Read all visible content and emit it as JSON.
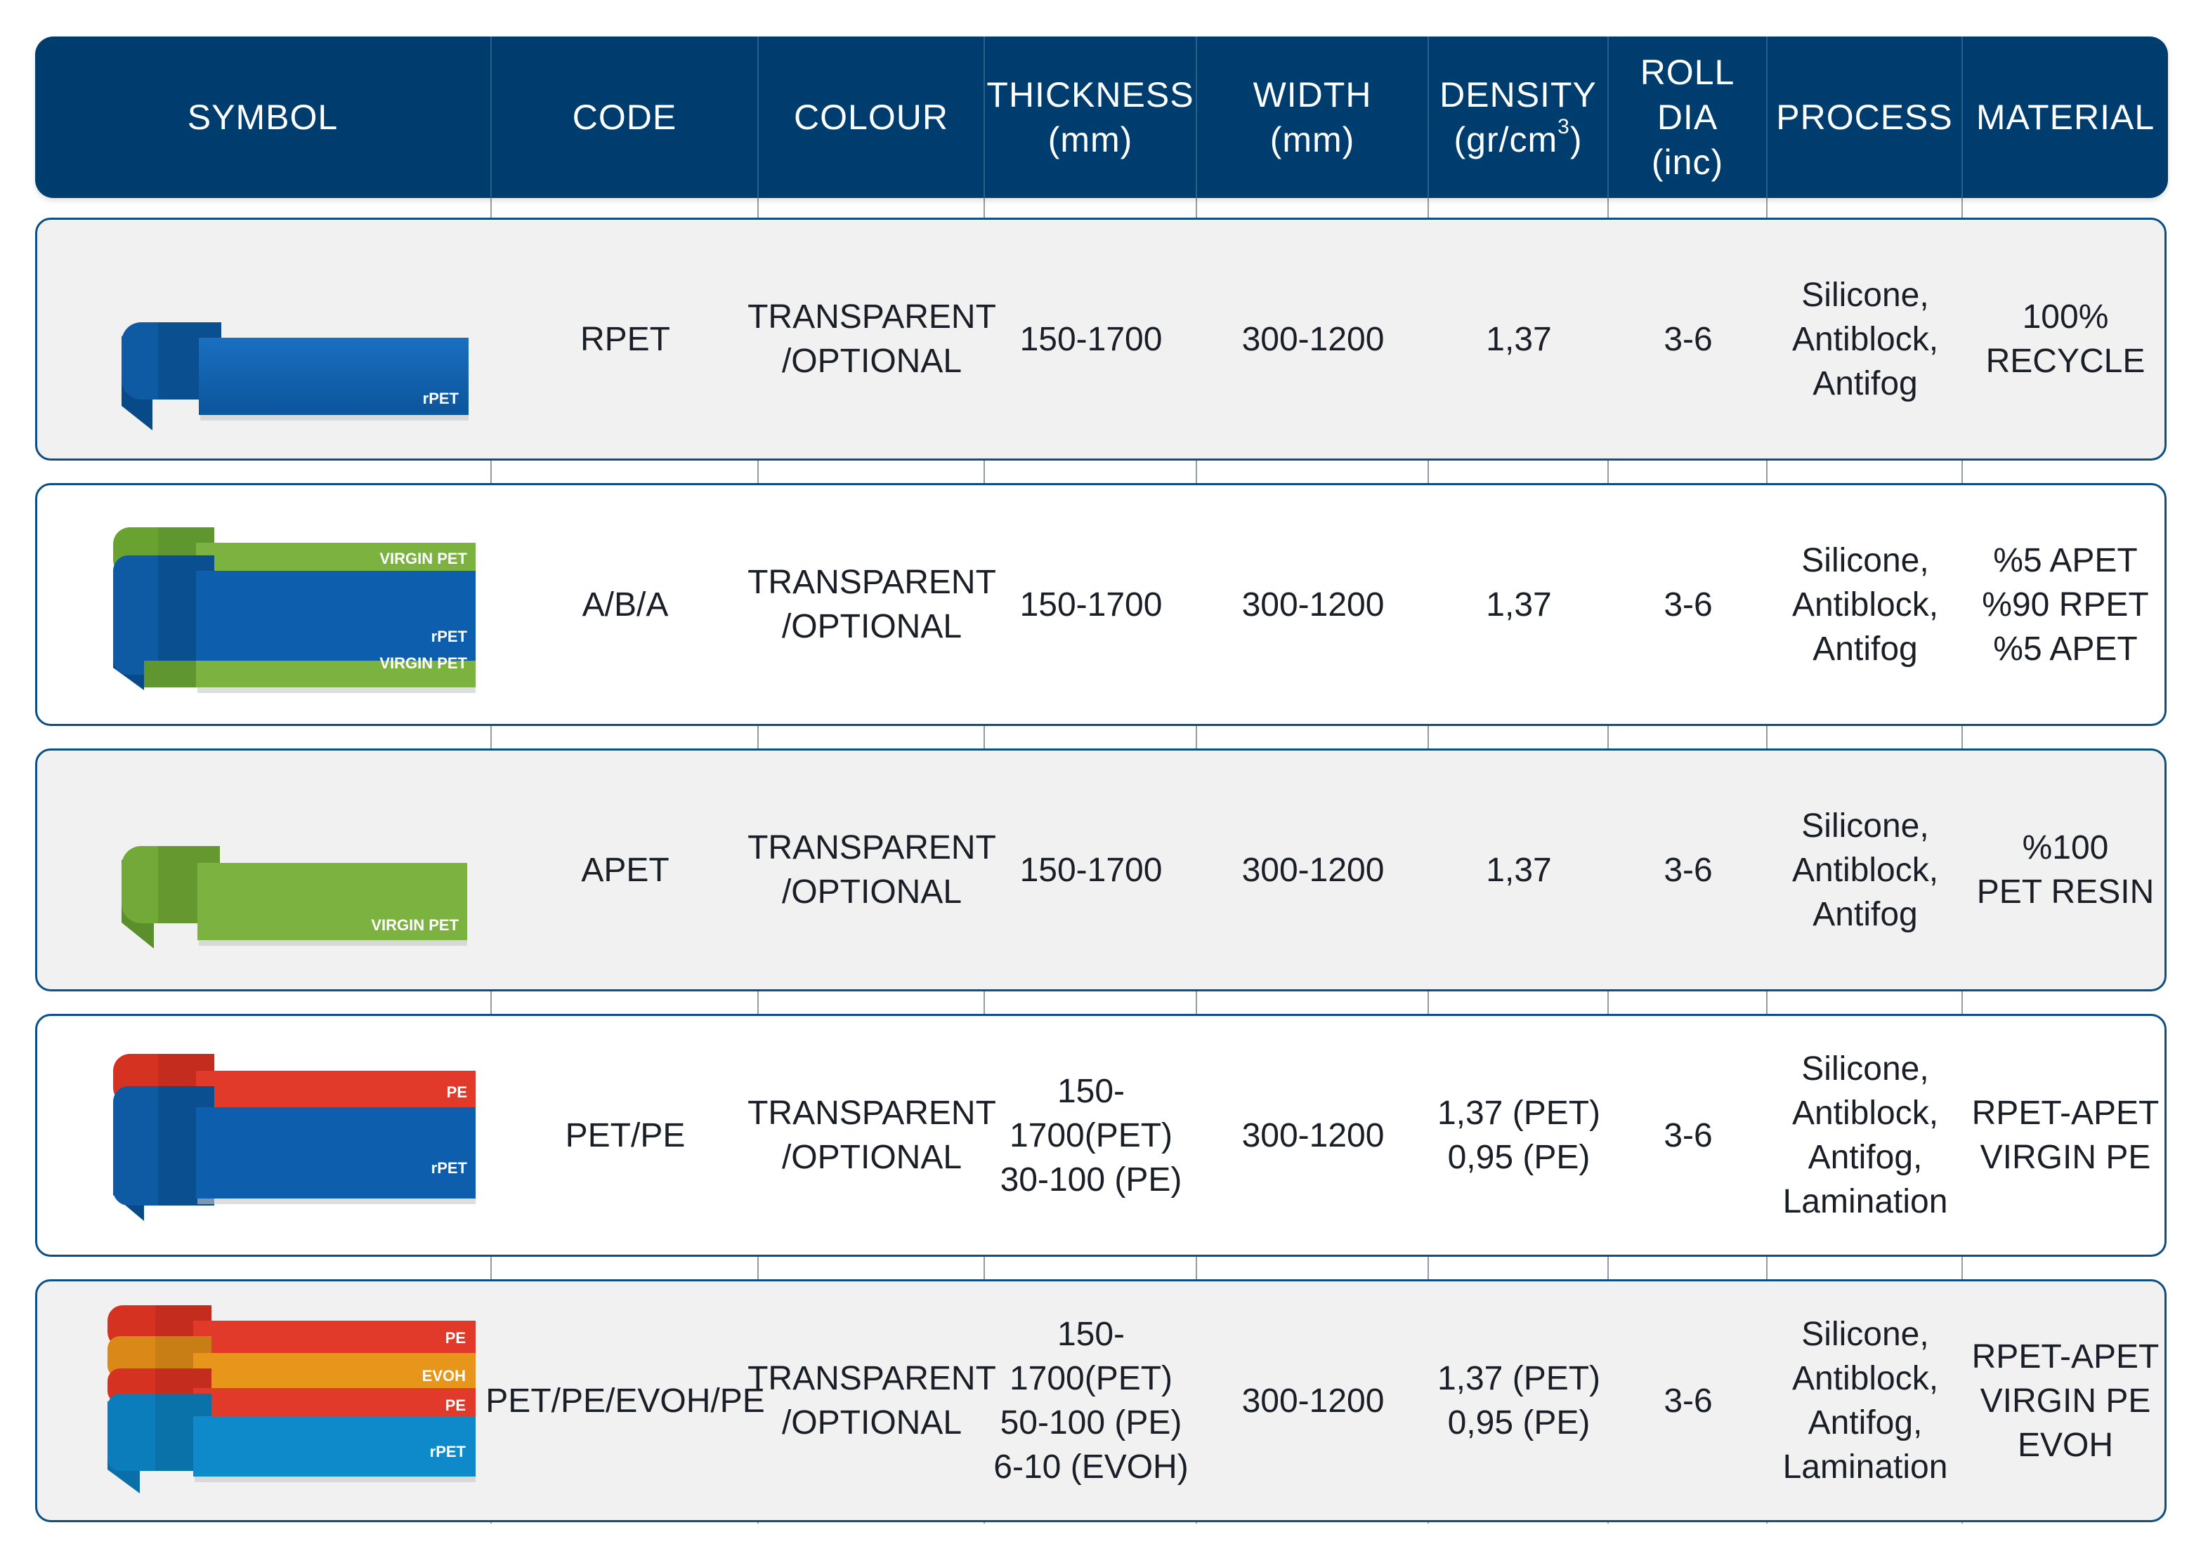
{
  "header": {
    "symbol": "SYMBOL",
    "code": "CODE",
    "colour": "COLOUR",
    "thickness": "THICKNESS\n(mm)",
    "width": "WIDTH\n(mm)",
    "density_main": "DENSITY",
    "density_unit_pre": "(gr/cm",
    "density_unit_sup": "3",
    "density_unit_post": ")",
    "roll_dia": "ROLL DIA\n(inc)",
    "process": "PROCESS",
    "material": "MATERIAL"
  },
  "colors": {
    "header_bg": "#003d6f",
    "rpet_blue": "#0d5fad",
    "virgin_green": "#7cb240",
    "pe_red": "#e23a2a",
    "evoh_orange": "#e8951c",
    "rpet_light_blue": "#0e89c9"
  },
  "rows": [
    {
      "symbol": {
        "layers": [
          "rPET"
        ]
      },
      "code": "RPET",
      "colour": "TRANSPARENT\n/OPTIONAL",
      "thickness": "150-1700",
      "width": "300-1200",
      "density": "1,37",
      "roll_dia": "3-6",
      "process": "Silicone,\nAntiblock,\nAntifog",
      "material": "100%\nRECYCLE"
    },
    {
      "symbol": {
        "layers": [
          "VIRGIN PET",
          "rPET",
          "VIRGIN PET"
        ]
      },
      "code": "A/B/A",
      "colour": "TRANSPARENT\n/OPTIONAL",
      "thickness": "150-1700",
      "width": "300-1200",
      "density": "1,37",
      "roll_dia": "3-6",
      "process": "Silicone,\nAntiblock,\nAntifog",
      "material": "%5 APET\n%90 RPET\n%5 APET"
    },
    {
      "symbol": {
        "layers": [
          "VIRGIN PET"
        ]
      },
      "code": "APET",
      "colour": "TRANSPARENT\n/OPTIONAL",
      "thickness": "150-1700",
      "width": "300-1200",
      "density": "1,37",
      "roll_dia": "3-6",
      "process": "Silicone,\nAntiblock,\nAntifog",
      "material": "%100\nPET RESIN"
    },
    {
      "symbol": {
        "layers": [
          "PE",
          "rPET"
        ]
      },
      "code": "PET/PE",
      "colour": "TRANSPARENT\n/OPTIONAL",
      "thickness": "150-1700(PET)\n30-100 (PE)",
      "width": "300-1200",
      "density": "1,37 (PET)\n0,95 (PE)",
      "roll_dia": "3-6",
      "process": "Silicone,\nAntiblock,\nAntifog,\nLamination",
      "material": "RPET-APET\nVIRGIN PE"
    },
    {
      "symbol": {
        "layers": [
          "PE",
          "EVOH",
          "PE",
          "rPET"
        ]
      },
      "code": "PET/PE/EVOH/PE",
      "colour": "TRANSPARENT\n/OPTIONAL",
      "thickness": "150-1700(PET)\n50-100 (PE)\n6-10 (EVOH)",
      "width": "300-1200",
      "density": "1,37 (PET)\n0,95 (PE)",
      "roll_dia": "3-6",
      "process": "Silicone,\nAntiblock,\nAntifog,\nLamination",
      "material": "RPET-APET\nVIRGIN PE\nEVOH"
    }
  ]
}
